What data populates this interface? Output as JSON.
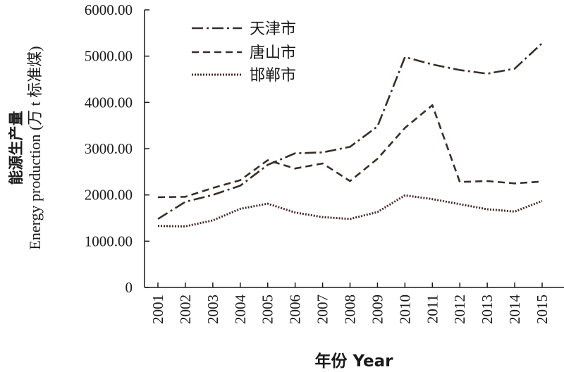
{
  "chart_data": {
    "type": "line",
    "title": "",
    "x": [
      "2001",
      "2002",
      "2003",
      "2004",
      "2005",
      "2006",
      "2007",
      "2008",
      "2009",
      "2010",
      "2011",
      "2012",
      "2013",
      "2014",
      "2015"
    ],
    "ylabel_cn": "能源生产量",
    "ylabel_en": "Energy production (万 t 标准煤)",
    "xlabel": "年份 Year",
    "ylim": [
      0,
      6000
    ],
    "yticks": [
      "0",
      "1000.00",
      "2000.00",
      "3000.00",
      "4000.00",
      "5000.00",
      "6000.00"
    ],
    "ytick_values": [
      0,
      1000,
      2000,
      3000,
      4000,
      5000,
      6000
    ],
    "grid": false,
    "legend_position": "top-left",
    "series": [
      {
        "name": "天津市",
        "style": "dash-dot",
        "color": "#3a2e2a",
        "values": [
          1480,
          1850,
          2000,
          2200,
          2650,
          2900,
          2920,
          3040,
          3480,
          4980,
          4820,
          4700,
          4620,
          4730,
          5280
        ]
      },
      {
        "name": "唐山市",
        "style": "dashed",
        "color": "#3a2e2a",
        "values": [
          1950,
          1960,
          2150,
          2320,
          2750,
          2570,
          2680,
          2300,
          2780,
          3450,
          3940,
          2280,
          2300,
          2250,
          2290
        ]
      },
      {
        "name": "邯郸市",
        "style": "dotted",
        "color": "#4a2a2a",
        "values": [
          1330,
          1320,
          1450,
          1700,
          1810,
          1620,
          1520,
          1480,
          1630,
          1990,
          1910,
          1800,
          1690,
          1640,
          1870
        ]
      }
    ]
  }
}
